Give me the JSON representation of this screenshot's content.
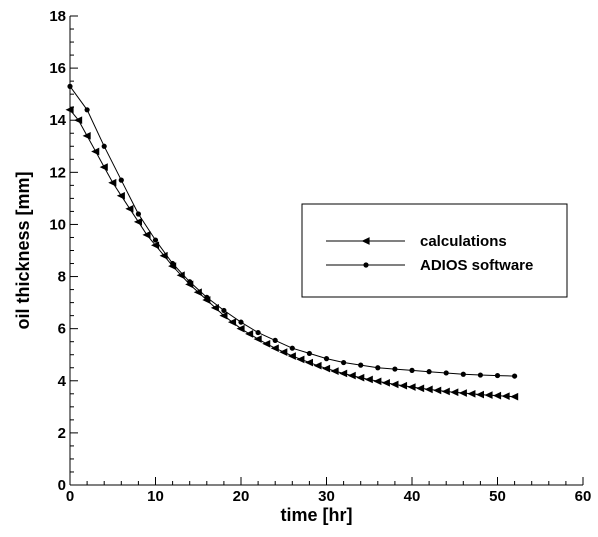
{
  "chart_data": {
    "type": "line",
    "xlabel": "time [hr]",
    "ylabel": "oil thickness [mm]",
    "xlim": [
      0,
      60
    ],
    "ylim": [
      0,
      18
    ],
    "xticks": [
      0,
      10,
      20,
      30,
      40,
      50,
      60
    ],
    "yticks": [
      0,
      2,
      4,
      6,
      8,
      10,
      12,
      14,
      16,
      18
    ],
    "grid": false,
    "legend_position": "right",
    "series": [
      {
        "name": "calculations",
        "marker": "triangle-left",
        "color": "#000000",
        "x": [
          0,
          1,
          2,
          3,
          4,
          5,
          6,
          7,
          8,
          9,
          10,
          11,
          12,
          13,
          14,
          15,
          16,
          17,
          18,
          19,
          20,
          21,
          22,
          23,
          24,
          25,
          26,
          27,
          28,
          29,
          30,
          31,
          32,
          33,
          34,
          35,
          36,
          37,
          38,
          39,
          40,
          41,
          42,
          43,
          44,
          45,
          46,
          47,
          48,
          49,
          50,
          51,
          52
        ],
        "y": [
          14.4,
          14.0,
          13.4,
          12.8,
          12.2,
          11.6,
          11.1,
          10.6,
          10.1,
          9.6,
          9.2,
          8.8,
          8.4,
          8.05,
          7.7,
          7.4,
          7.1,
          6.8,
          6.5,
          6.25,
          6.0,
          5.8,
          5.6,
          5.42,
          5.25,
          5.1,
          4.95,
          4.82,
          4.7,
          4.58,
          4.47,
          4.37,
          4.28,
          4.2,
          4.12,
          4.05,
          3.98,
          3.92,
          3.86,
          3.81,
          3.76,
          3.71,
          3.67,
          3.63,
          3.59,
          3.56,
          3.53,
          3.5,
          3.47,
          3.45,
          3.43,
          3.41,
          3.39
        ]
      },
      {
        "name": "ADIOS software",
        "marker": "circle",
        "color": "#000000",
        "x": [
          0,
          2,
          4,
          6,
          8,
          10,
          12,
          14,
          16,
          18,
          20,
          22,
          24,
          26,
          28,
          30,
          32,
          34,
          36,
          38,
          40,
          42,
          44,
          46,
          48,
          50,
          52
        ],
        "y": [
          15.3,
          14.4,
          13.0,
          11.7,
          10.4,
          9.4,
          8.5,
          7.8,
          7.2,
          6.7,
          6.25,
          5.85,
          5.55,
          5.25,
          5.05,
          4.85,
          4.7,
          4.6,
          4.5,
          4.45,
          4.4,
          4.35,
          4.3,
          4.25,
          4.22,
          4.2,
          4.18
        ]
      }
    ]
  }
}
